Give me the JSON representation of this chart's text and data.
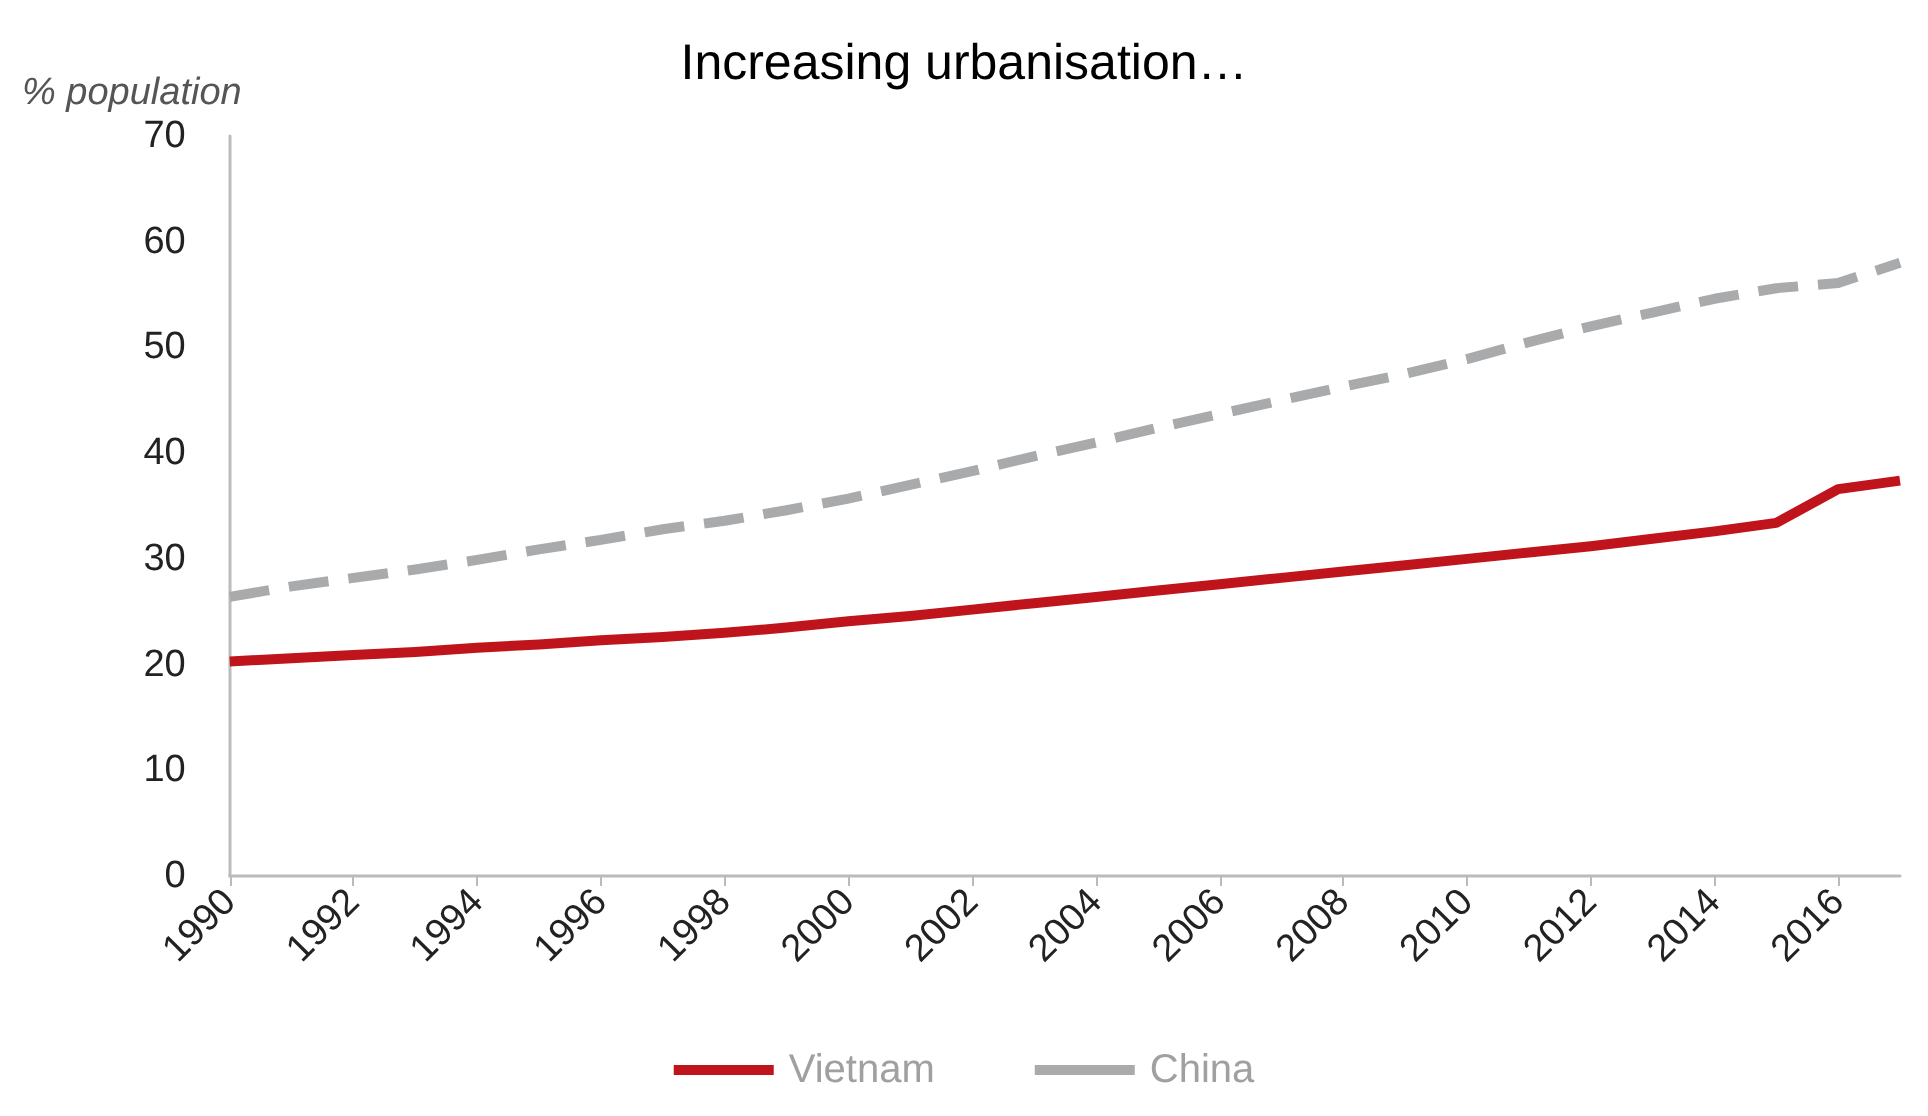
{
  "chart_data": {
    "type": "line",
    "title": "Increasing urbanisation…",
    "ylabel": "% population",
    "x": [
      1990,
      1991,
      1992,
      1993,
      1994,
      1995,
      1996,
      1997,
      1998,
      1999,
      2000,
      2001,
      2002,
      2003,
      2004,
      2005,
      2006,
      2007,
      2008,
      2009,
      2010,
      2011,
      2012,
      2013,
      2014,
      2015,
      2016,
      2017
    ],
    "series": [
      {
        "name": "Vietnam",
        "color": "#c0141c",
        "line_style": "solid",
        "values": [
          20.3,
          20.6,
          20.9,
          21.2,
          21.6,
          21.9,
          22.3,
          22.6,
          23.0,
          23.5,
          24.1,
          24.6,
          25.2,
          25.8,
          26.4,
          27.0,
          27.6,
          28.2,
          28.8,
          29.4,
          30.0,
          30.6,
          31.2,
          31.9,
          32.6,
          33.4,
          36.6,
          37.4
        ]
      },
      {
        "name": "China",
        "color": "#a9aaac",
        "line_style": "dashed",
        "values": [
          26.4,
          27.4,
          28.2,
          29.0,
          29.9,
          30.9,
          31.8,
          32.8,
          33.6,
          34.6,
          35.7,
          37.0,
          38.3,
          39.7,
          41.0,
          42.4,
          43.7,
          45.0,
          46.3,
          47.5,
          48.9,
          50.5,
          52.0,
          53.3,
          54.6,
          55.6,
          56.1,
          58.0
        ]
      }
    ],
    "xlim": [
      1990,
      2017
    ],
    "xticks": [
      1990,
      1992,
      1994,
      1996,
      1998,
      2000,
      2002,
      2004,
      2006,
      2008,
      2010,
      2012,
      2014,
      2016
    ],
    "ylim": [
      0,
      70
    ],
    "yticks": [
      0,
      10,
      20,
      30,
      40,
      50,
      60,
      70
    ],
    "grid": false,
    "legend": "bottom",
    "marker": "none"
  }
}
